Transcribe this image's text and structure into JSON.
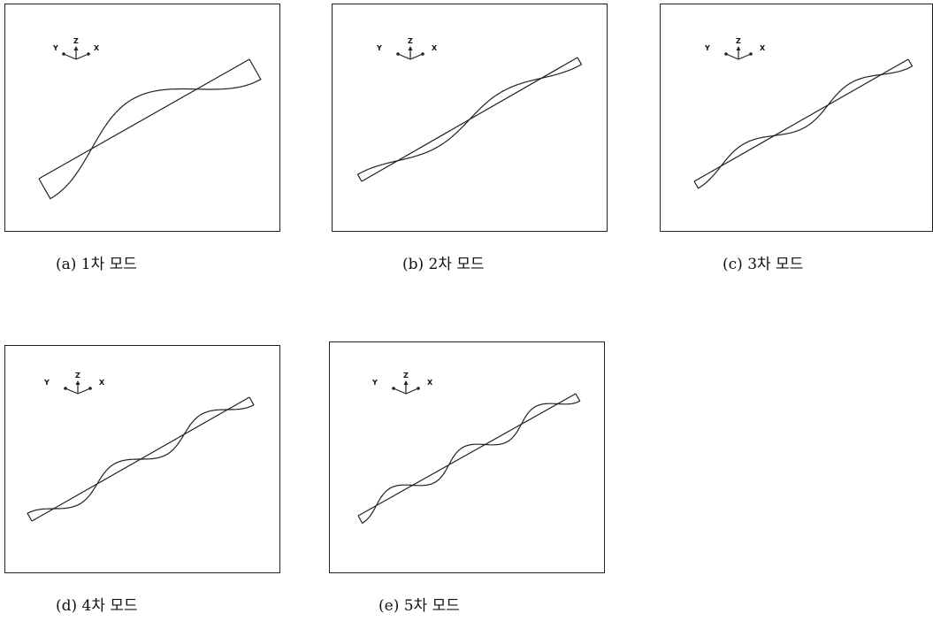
{
  "axes_labels": {
    "y": "Y",
    "z": "Z",
    "x": "X"
  },
  "panels": [
    {
      "caption": "(a) 1차 모드",
      "half_waves": 1
    },
    {
      "caption": "(b) 2차 모드",
      "half_waves": 2
    },
    {
      "caption": "(c) 3차 모드",
      "half_waves": 3
    },
    {
      "caption": "(d) 4차 모드",
      "half_waves": 4
    },
    {
      "caption": "(e) 5차 모드",
      "half_waves": 5
    }
  ],
  "colors": {
    "line": "#222222",
    "border": "#222222",
    "background": "#ffffff"
  }
}
